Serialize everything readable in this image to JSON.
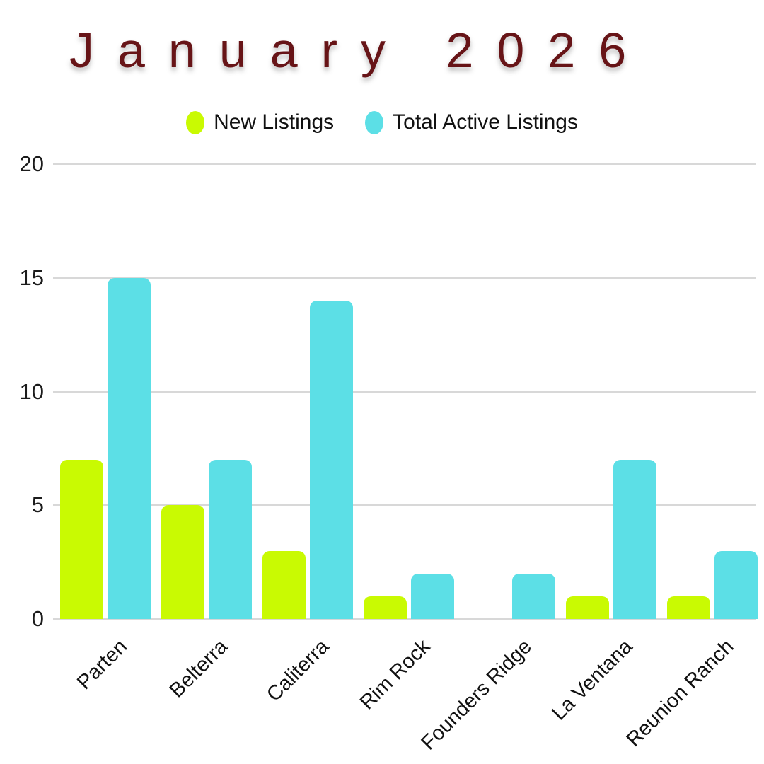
{
  "title": "January 2026",
  "colors": {
    "title": "#671417",
    "new_listings": "#c9fa02",
    "total_active_listings": "#5cdfe6",
    "gridline": "#d8d8d8",
    "axis_text": "#1c1c1c",
    "legend_text": "#111111",
    "background": "#ffffff"
  },
  "legend": {
    "items": [
      {
        "swatch_icon": "ellipse-swatch",
        "label": "New Listings"
      },
      {
        "swatch_icon": "ellipse-swatch",
        "label": "Total Active Listings"
      }
    ]
  },
  "chart_data": {
    "type": "bar",
    "title": "January 2026",
    "categories": [
      "Parten",
      "Belterra",
      "Caliterra",
      "Rim Rock",
      "Founders Ridge",
      "La Ventana",
      "Reunion Ranch"
    ],
    "series": [
      {
        "name": "New Listings",
        "color": "#c9fa02",
        "values": [
          7,
          5,
          3,
          1,
          0,
          1,
          1
        ]
      },
      {
        "name": "Total Active Listings",
        "color": "#5cdfe6",
        "values": [
          15,
          7,
          14,
          2,
          2,
          7,
          3
        ]
      }
    ],
    "xlabel": "",
    "ylabel": "",
    "ylim": [
      0,
      20
    ],
    "yticks": [
      0,
      5,
      10,
      15,
      20
    ],
    "grid": "horizontal",
    "legend_position": "top-center",
    "xtick_rotation_deg": -45
  }
}
